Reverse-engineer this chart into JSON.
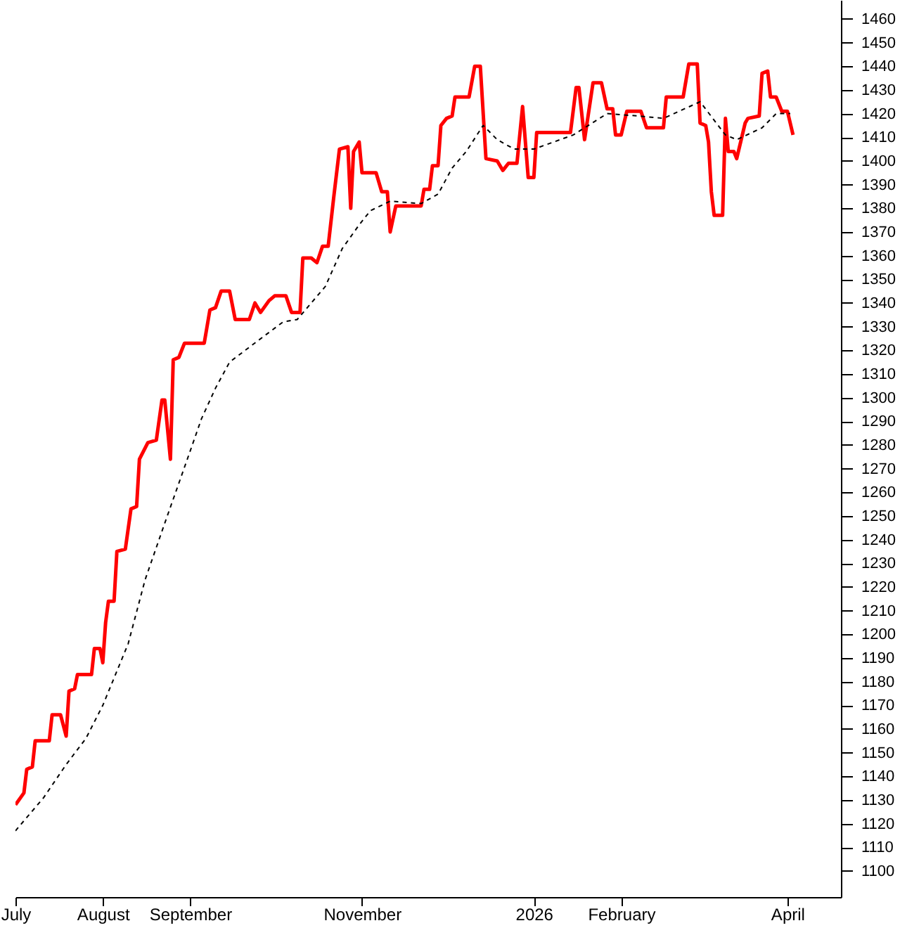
{
  "chart_data": {
    "type": "line",
    "xlim": [
      "2025-07-01",
      "2026-04-20"
    ],
    "ylim": [
      1089,
      1468
    ],
    "xticks": [
      {
        "value": "2025-07-01",
        "label": "July"
      },
      {
        "value": "2025-08-01",
        "label": "August"
      },
      {
        "value": "2025-09-01",
        "label": "September"
      },
      {
        "value": "2025-11-01",
        "label": "November"
      },
      {
        "value": "2026-01-01",
        "label": "2026"
      },
      {
        "value": "2026-02-01",
        "label": "February"
      },
      {
        "value": "2026-04-01",
        "label": "April"
      }
    ],
    "yticks": [
      1100,
      1110,
      1120,
      1130,
      1140,
      1150,
      1160,
      1170,
      1180,
      1190,
      1200,
      1210,
      1220,
      1230,
      1240,
      1250,
      1260,
      1270,
      1280,
      1290,
      1300,
      1310,
      1320,
      1330,
      1340,
      1350,
      1360,
      1370,
      1380,
      1390,
      1400,
      1410,
      1420,
      1430,
      1440,
      1450,
      1460
    ],
    "grid": false,
    "series": [
      {
        "color": "#ff0000",
        "line_style": "solid",
        "x": [
          "2025-07-01",
          "2025-07-04",
          "2025-07-05",
          "2025-07-07",
          "2025-07-08",
          "2025-07-13",
          "2025-07-14",
          "2025-07-17",
          "2025-07-19",
          "2025-07-20",
          "2025-07-22",
          "2025-07-23",
          "2025-07-28",
          "2025-07-29",
          "2025-07-31",
          "2025-08-01",
          "2025-08-02",
          "2025-08-03",
          "2025-08-05",
          "2025-08-06",
          "2025-08-09",
          "2025-08-11",
          "2025-08-13",
          "2025-08-14",
          "2025-08-17",
          "2025-08-20",
          "2025-08-22",
          "2025-08-23",
          "2025-08-25",
          "2025-08-26",
          "2025-08-28",
          "2025-08-30",
          "2025-09-06",
          "2025-09-08",
          "2025-09-10",
          "2025-09-12",
          "2025-09-15",
          "2025-09-17",
          "2025-09-22",
          "2025-09-24",
          "2025-09-26",
          "2025-09-29",
          "2025-10-01",
          "2025-10-05",
          "2025-10-07",
          "2025-10-10",
          "2025-10-11",
          "2025-10-14",
          "2025-10-16",
          "2025-10-18",
          "2025-10-20",
          "2025-10-22",
          "2025-10-24",
          "2025-10-27",
          "2025-10-28",
          "2025-10-29",
          "2025-10-31",
          "2025-11-01",
          "2025-11-06",
          "2025-11-08",
          "2025-11-10",
          "2025-11-11",
          "2025-11-13",
          "2025-11-22",
          "2025-11-23",
          "2025-11-25",
          "2025-11-26",
          "2025-11-28",
          "2025-11-29",
          "2025-12-01",
          "2025-12-03",
          "2025-12-04",
          "2025-12-09",
          "2025-12-11",
          "2025-12-13",
          "2025-12-15",
          "2025-12-19",
          "2025-12-21",
          "2025-12-23",
          "2025-12-26",
          "2025-12-28",
          "2025-12-30",
          "2026-01-01",
          "2026-01-02",
          "2026-01-14",
          "2026-01-16",
          "2026-01-17",
          "2026-01-19",
          "2026-01-22",
          "2026-01-25",
          "2026-01-27",
          "2026-01-29",
          "2026-01-30",
          "2026-02-01",
          "2026-02-03",
          "2026-02-08",
          "2026-02-10",
          "2026-02-16",
          "2026-02-17",
          "2026-02-23",
          "2026-02-25",
          "2026-02-28",
          "2026-03-01",
          "2026-03-03",
          "2026-03-04",
          "2026-03-05",
          "2026-03-06",
          "2026-03-09",
          "2026-03-10",
          "2026-03-11",
          "2026-03-13",
          "2026-03-14",
          "2026-03-17",
          "2026-03-18",
          "2026-03-22",
          "2026-03-23",
          "2026-03-25",
          "2026-03-26",
          "2026-03-28",
          "2026-03-30",
          "2026-04-01",
          "2026-04-03"
        ],
        "values": [
          1128,
          1133,
          1143,
          1144,
          1155,
          1155,
          1166,
          1166,
          1157,
          1176,
          1177,
          1183,
          1183,
          1194,
          1194,
          1188,
          1205,
          1214,
          1214,
          1235,
          1236,
          1253,
          1254,
          1274,
          1281,
          1282,
          1299,
          1299,
          1274,
          1316,
          1317,
          1323,
          1323,
          1337,
          1338,
          1345,
          1345,
          1333,
          1333,
          1340,
          1336,
          1341,
          1343,
          1343,
          1336,
          1336,
          1359,
          1359,
          1357,
          1364,
          1364,
          1385,
          1405,
          1406,
          1380,
          1404,
          1408,
          1395,
          1395,
          1387,
          1387,
          1370,
          1381,
          1381,
          1388,
          1388,
          1398,
          1398,
          1415,
          1418,
          1419,
          1427,
          1427,
          1440,
          1440,
          1401,
          1400,
          1396,
          1399,
          1399,
          1423,
          1393,
          1393,
          1412,
          1412,
          1431,
          1431,
          1409,
          1433,
          1433,
          1422,
          1422,
          1411,
          1411,
          1421,
          1421,
          1414,
          1414,
          1427,
          1427,
          1441,
          1441,
          1416,
          1415,
          1408,
          1387,
          1377,
          1377,
          1418,
          1404,
          1404,
          1401,
          1416,
          1418,
          1419,
          1437,
          1438,
          1427,
          1427,
          1421,
          1421,
          1411
        ]
      },
      {
        "color": "#000000",
        "line_style": "dashed",
        "x": [
          "2025-07-01",
          "2025-07-11",
          "2025-07-19",
          "2025-07-26",
          "2025-08-01",
          "2025-08-10",
          "2025-08-16",
          "2025-08-23",
          "2025-08-31",
          "2025-09-05",
          "2025-09-10",
          "2025-09-15",
          "2025-09-25",
          "2025-10-04",
          "2025-10-09",
          "2025-10-19",
          "2025-10-25",
          "2025-10-31",
          "2025-11-04",
          "2025-11-11",
          "2025-11-22",
          "2025-11-28",
          "2025-12-03",
          "2025-12-08",
          "2025-12-14",
          "2025-12-19",
          "2025-12-25",
          "2026-01-01",
          "2026-01-15",
          "2026-01-27",
          "2026-02-07",
          "2026-02-16",
          "2026-03-01",
          "2026-03-10",
          "2026-03-14",
          "2026-03-23",
          "2026-03-28",
          "2026-04-02"
        ],
        "values": [
          1117,
          1131,
          1145,
          1156,
          1170,
          1196,
          1223,
          1247,
          1274,
          1291,
          1304,
          1315,
          1324,
          1332,
          1333,
          1347,
          1363,
          1373,
          1379,
          1383,
          1382,
          1386,
          1397,
          1404,
          1415,
          1409,
          1405,
          1405,
          1411,
          1420,
          1419,
          1418,
          1425,
          1411,
          1409,
          1414,
          1420,
          1420
        ]
      }
    ]
  }
}
